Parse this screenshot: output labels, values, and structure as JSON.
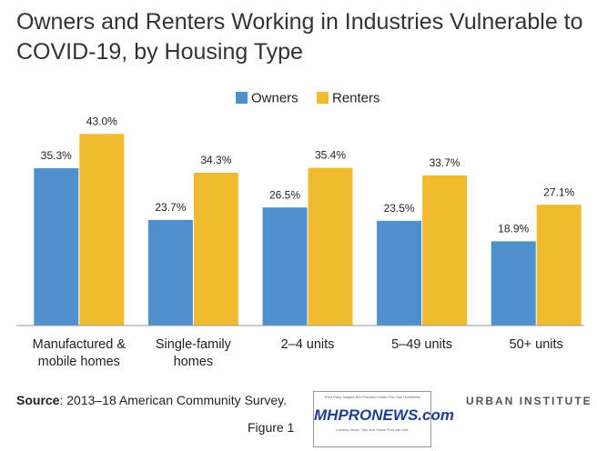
{
  "chart_data": {
    "type": "bar",
    "title": "Owners and Renters Working in Industries Vulnerable to COVID-19, by Housing Type",
    "categories": [
      "Manufactured & mobile homes",
      "Single-family homes",
      "2–4 units",
      "5–49 units",
      "50+ units"
    ],
    "series": [
      {
        "name": "Owners",
        "color": "#4f91cf",
        "values": [
          35.3,
          23.7,
          26.5,
          23.5,
          18.9
        ],
        "value_labels": [
          "35.3%",
          "23.7%",
          "26.5%",
          "23.5%",
          "18.9%"
        ]
      },
      {
        "name": "Renters",
        "color": "#f1bb2f",
        "values": [
          43.0,
          34.3,
          35.4,
          33.7,
          27.1
        ],
        "value_labels": [
          "43.0%",
          "34.3%",
          "35.4%",
          "33.7%",
          "27.1%"
        ]
      }
    ],
    "legend": "top",
    "source_label": "Source",
    "source": ": 2013–18 American Community Survey.",
    "logo": "URBAN INSTITUTE",
    "figure_caption": "Figure 1",
    "watermark": {
      "note": "Third Party Images Are Provided Under Fair Use Guidelines",
      "logo": "MHPRONEWS.com",
      "tagline": "Industry News, Tips and Views Pros can Use"
    }
  }
}
